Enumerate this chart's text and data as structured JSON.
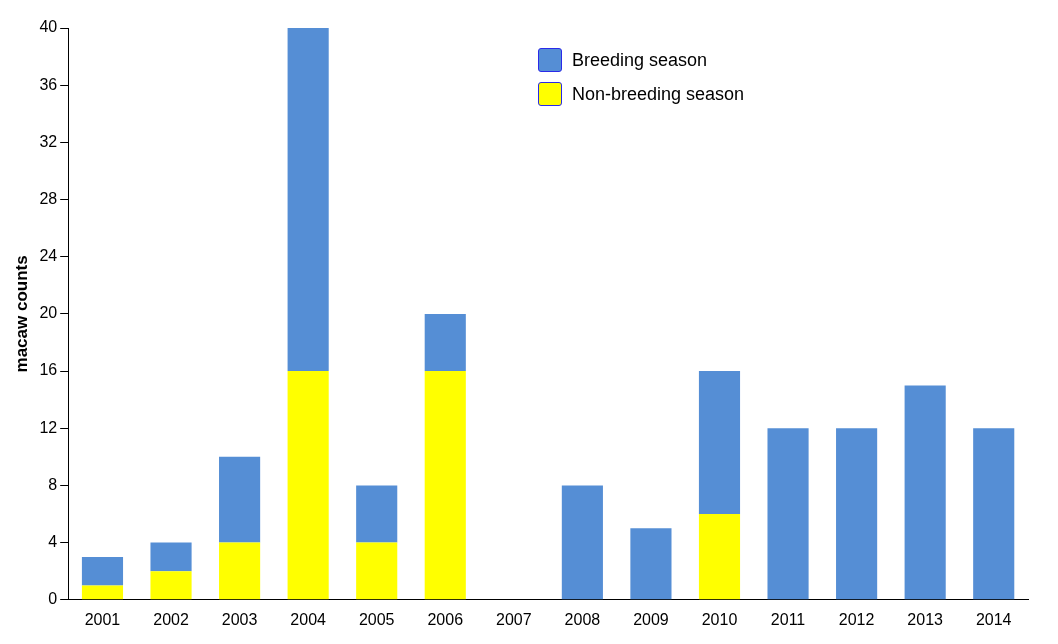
{
  "chart_data": {
    "type": "bar",
    "stacked": true,
    "ylabel": "macaw counts",
    "categories": [
      "2001",
      "2002",
      "2003",
      "2004",
      "2005",
      "2006",
      "2007",
      "2008",
      "2009",
      "2010",
      "2011",
      "2012",
      "2013",
      "2014"
    ],
    "series": [
      {
        "name": "Non-breeding season",
        "color": "#ffff00",
        "values": [
          1,
          2,
          4,
          16,
          4,
          16,
          null,
          null,
          null,
          6,
          null,
          null,
          null,
          null
        ]
      },
      {
        "name": "Breeding season",
        "color": "#558ed5",
        "values": [
          2,
          2,
          6,
          24,
          4,
          4,
          null,
          8,
          5,
          10,
          12,
          12,
          15,
          12
        ]
      }
    ],
    "ylim": [
      0,
      40
    ],
    "yticks": [
      0,
      4,
      8,
      12,
      16,
      20,
      24,
      28,
      32,
      36,
      40
    ],
    "grid": false,
    "legend": "top right"
  }
}
